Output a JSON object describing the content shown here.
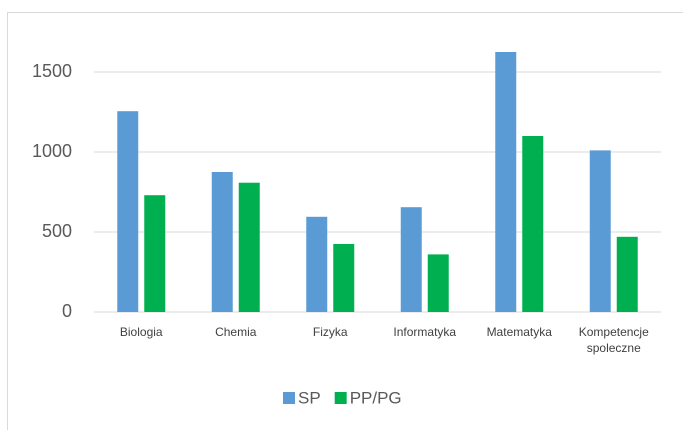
{
  "chart_data": {
    "type": "bar",
    "categories": [
      "Biologia",
      "Chemia",
      "Fizyka",
      "Informatyka",
      "Matematyka",
      "Kompetencje spoleczne"
    ],
    "series": [
      {
        "name": "SP",
        "color": "#5b9bd5",
        "values": [
          1255,
          875,
          595,
          655,
          1625,
          1010
        ]
      },
      {
        "name": "PP/PG",
        "color": "#00b050",
        "values": [
          730,
          808,
          425,
          360,
          1100,
          470
        ]
      }
    ],
    "ylim": [
      0,
      1800
    ],
    "yticks": [
      0,
      500,
      1000,
      1500
    ],
    "grid": true,
    "legend": "bottom"
  }
}
